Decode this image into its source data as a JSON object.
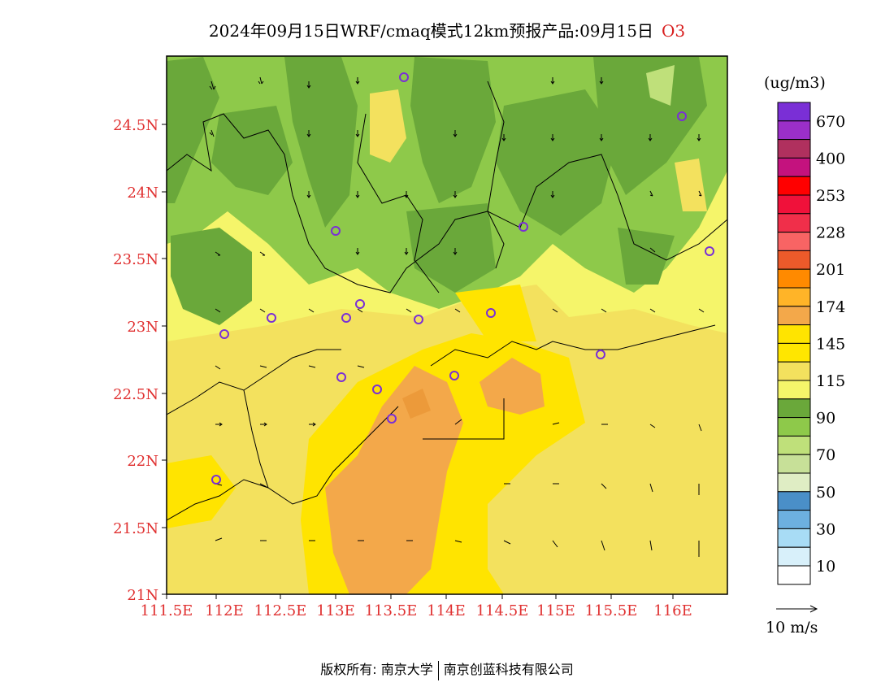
{
  "title": {
    "main": "2024年09月15日WRF/cmaq模式12km预报产品:09月15日",
    "variable": "O3"
  },
  "axes": {
    "y_ticks": [
      "24.5N",
      "24N",
      "23.5N",
      "23N",
      "22.5N",
      "22N",
      "21.5N",
      "21N"
    ],
    "x_ticks": [
      "111.5E",
      "112E",
      "112.5E",
      "113E",
      "113.5E",
      "114E",
      "114.5E",
      "115E",
      "115.5E",
      "116E"
    ]
  },
  "legend": {
    "unit": "(ug/m3)",
    "labels": [
      "670",
      "400",
      "253",
      "228",
      "201",
      "174",
      "145",
      "115",
      "90",
      "70",
      "50",
      "30",
      "10"
    ],
    "colors": [
      "#7a2fd6",
      "#9b2fc9",
      "#b0305e",
      "#c4127e",
      "#ff0000",
      "#f0113a",
      "#f02f4a",
      "#f86464",
      "#ec5a2a",
      "#ff8a00",
      "#ffb428",
      "#f3a84a",
      "#ffe400",
      "#ffe600",
      "#f3e15e",
      "#f5f56a",
      "#6aa83a",
      "#8ec94a",
      "#bfe07a",
      "#c7e098",
      "#dfedc4",
      "#4a8fc8",
      "#6db0e0",
      "#a8dcf5",
      "#d8f0fa",
      "#ffffff"
    ]
  },
  "wind_scale": {
    "label": "10 m/s"
  },
  "copyright": {
    "left": "版权所有: 南京大学",
    "right": "南京创蓝科技有限公司"
  }
}
